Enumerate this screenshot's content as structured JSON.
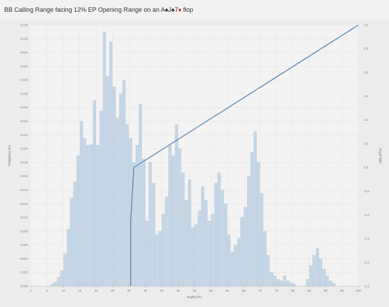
{
  "chart_data": {
    "type": "bar+line",
    "title": {
      "prefix": "BB Calling Range facing 12% EP Opening Range on an A",
      "cards": [
        {
          "rank": "",
          "suit": "♠",
          "color": "#222222"
        },
        {
          "rank": "J",
          "suit": "♠",
          "color": "#222222"
        },
        {
          "rank": "7",
          "suit": "♦",
          "color": "#d42020"
        }
      ],
      "suffix": " flop"
    },
    "xlabel": "Equity (%)",
    "ylabel_left": "Frequency (%)",
    "ylabel_right": "Payoff (bb)",
    "xlim": [
      0,
      100
    ],
    "ylim_left": [
      0,
      0.038
    ],
    "ylim_right": [
      -2.5,
      3.0
    ],
    "x_ticks": [
      0,
      5,
      10,
      15,
      20,
      25,
      30,
      35,
      40,
      45,
      50,
      55,
      60,
      65,
      70,
      75,
      80,
      85,
      90,
      95,
      100
    ],
    "y_left_ticks": [
      "0.000",
      "0.002",
      "0.004",
      "0.006",
      "0.008",
      "0.010",
      "0.012",
      "0.014",
      "0.016",
      "0.018",
      "0.020",
      "0.022",
      "0.024",
      "0.026",
      "0.028",
      "0.030",
      "0.032",
      "0.034",
      "0.036",
      "0.038"
    ],
    "y_right_ticks": [
      "-2.5",
      "-2.0",
      "-1.5",
      "-1.0",
      "-0.5",
      "0.0",
      "0.5",
      "1.0",
      "1.5",
      "2.0",
      "2.5",
      "3.0"
    ],
    "grid": true,
    "bar_color": "#c5d6e6",
    "bar_edge": "#a9bfd4",
    "line_color": "#5b86b4",
    "histogram": {
      "bin_width": 1,
      "bin_starts": [
        0,
        1,
        2,
        3,
        4,
        5,
        6,
        7,
        8,
        9,
        10,
        11,
        12,
        13,
        14,
        15,
        16,
        17,
        18,
        19,
        20,
        21,
        22,
        23,
        24,
        25,
        26,
        27,
        28,
        29,
        30,
        31,
        32,
        33,
        34,
        35,
        36,
        37,
        38,
        39,
        40,
        41,
        42,
        43,
        44,
        45,
        46,
        47,
        48,
        49,
        50,
        51,
        52,
        53,
        54,
        55,
        56,
        57,
        58,
        59,
        60,
        61,
        62,
        63,
        64,
        65,
        66,
        67,
        68,
        69,
        70,
        71,
        72,
        73,
        74,
        75,
        76,
        77,
        78,
        79,
        80,
        81,
        82,
        83,
        84,
        85,
        86,
        87,
        88,
        89,
        90,
        91,
        92,
        93,
        94,
        95,
        96,
        97,
        98,
        99
      ],
      "values": [
        0,
        0,
        0,
        0,
        0,
        0,
        0.0003,
        0.0006,
        0.0013,
        0.0023,
        0.0048,
        0.0083,
        0.0128,
        0.0152,
        0.019,
        0.024,
        0.0215,
        0.0205,
        0.0206,
        0.027,
        0.0205,
        0.0255,
        0.037,
        0.0305,
        0.0355,
        0.029,
        0.0245,
        0.028,
        0.03,
        0.0235,
        0.0215,
        0.018,
        0.0205,
        0.0265,
        0.0185,
        0.0095,
        0.018,
        0.015,
        0.0075,
        0.008,
        0.0105,
        0.013,
        0.0205,
        0.019,
        0.0235,
        0.02,
        0.0165,
        0.0125,
        0.0155,
        0.0085,
        0.009,
        0.011,
        0.0145,
        0.0125,
        0.0095,
        0.0105,
        0.015,
        0.0165,
        0.014,
        0.012,
        0.0075,
        0.005,
        0.006,
        0.007,
        0.01,
        0.0115,
        0.016,
        0.0195,
        0.0225,
        0.018,
        0.0135,
        0.008,
        0.0045,
        0.002,
        0.0015,
        0.001,
        0.0008,
        0.0015,
        0.0008,
        0.0005,
        0.0003,
        0,
        0,
        0,
        0.001,
        0.003,
        0.0045,
        0.0055,
        0.004,
        0.0025,
        0.0015,
        0.0008,
        0.0004,
        0,
        0,
        0,
        0,
        0,
        0,
        0
      ]
    },
    "payoff_line": {
      "x": [
        30.5,
        30.5,
        31.5,
        100
      ],
      "y": [
        -2.5,
        -1.15,
        0.0,
        3.0
      ]
    }
  }
}
